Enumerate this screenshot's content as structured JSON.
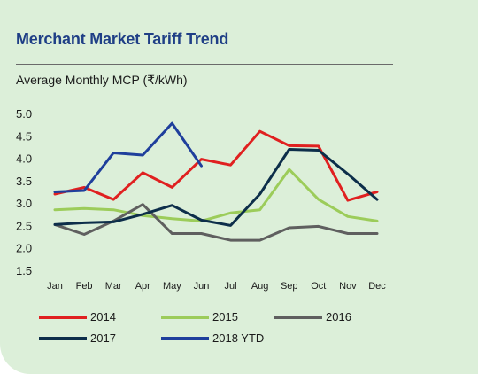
{
  "header": {
    "title": "Merchant Market Tariff Trend",
    "subtitle": "Average Monthly MCP (₹/kWh)"
  },
  "chart_data": {
    "type": "line",
    "title": "Merchant Market Tariff Trend",
    "ylabel": "Average Monthly MCP (₹/kWh)",
    "xlabel": "",
    "categories": [
      "Jan",
      "Feb",
      "Mar",
      "Apr",
      "May",
      "Jun",
      "Jul",
      "Aug",
      "Sep",
      "Oct",
      "Nov",
      "Dec"
    ],
    "ylim": [
      1.5,
      5.0
    ],
    "yticks": [
      "5.0",
      "4.5",
      "4.0",
      "3.5",
      "3.0",
      "2.5",
      "2.0",
      "1.5"
    ],
    "grid": false,
    "legend_position": "bottom",
    "series": [
      {
        "name": "2014",
        "color": "#e02020",
        "values": [
          3.2,
          3.35,
          3.08,
          3.68,
          3.35,
          3.98,
          3.85,
          4.6,
          4.28,
          4.27,
          3.06,
          3.25
        ]
      },
      {
        "name": "2015",
        "color": "#9ccc5a",
        "values": [
          2.85,
          2.88,
          2.85,
          2.72,
          2.65,
          2.6,
          2.78,
          2.85,
          3.75,
          3.08,
          2.7,
          2.6
        ]
      },
      {
        "name": "2016",
        "color": "#5f5f5f",
        "values": [
          2.52,
          2.3,
          2.6,
          2.97,
          2.32,
          2.32,
          2.17,
          2.17,
          2.45,
          2.48,
          2.32,
          2.32
        ]
      },
      {
        "name": "2017",
        "color": "#0d2e4a",
        "values": [
          2.52,
          2.56,
          2.58,
          2.75,
          2.95,
          2.62,
          2.5,
          3.2,
          4.2,
          4.18,
          3.65,
          3.08
        ]
      },
      {
        "name": "2018 YTD",
        "color": "#1f3f9c",
        "values": [
          3.25,
          3.28,
          4.12,
          4.07,
          4.78,
          3.83,
          null,
          null,
          null,
          null,
          null,
          null
        ]
      }
    ]
  }
}
